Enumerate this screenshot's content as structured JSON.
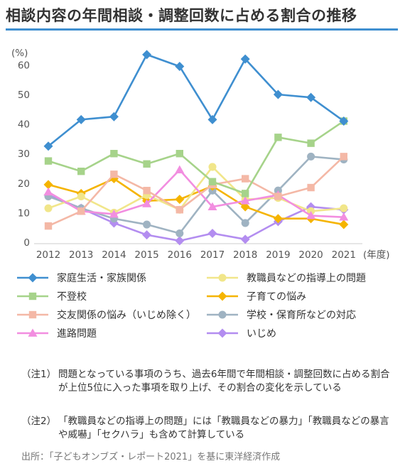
{
  "title": "相談内容の年間相談・調整回数に占める割合の推移",
  "colors": {
    "accent": "#3f8fd0"
  },
  "chart_data": {
    "type": "line",
    "title": "相談内容の年間相談・調整回数に占める割合の推移",
    "y_unit_label": "(%)",
    "x_unit_label": "(年度)",
    "xlabel": "",
    "ylabel": "",
    "x": [
      "2012",
      "2013",
      "2014",
      "2015",
      "2016",
      "2017",
      "2018",
      "2019",
      "2020",
      "2021"
    ],
    "ylim": [
      0,
      65
    ],
    "yticks": [
      "0",
      "10",
      "20",
      "30",
      "40",
      "50",
      "60"
    ],
    "grid": false,
    "legend_position": "bottom",
    "series": [
      {
        "name": "家庭生活・家族関係",
        "color": "#3f8fd0",
        "marker": "diamond",
        "values": [
          32.5,
          41.5,
          42.5,
          63.5,
          59.5,
          41.5,
          62.0,
          50.0,
          49.0,
          41.0
        ]
      },
      {
        "name": "不登校",
        "color": "#a6d38a",
        "marker": "square",
        "values": [
          27.5,
          24.0,
          30.0,
          26.5,
          30.0,
          20.5,
          16.5,
          35.5,
          33.5,
          41.0
        ]
      },
      {
        "name": "交友関係の悩み（いじめ除く）",
        "color": "#f4b8a6",
        "marker": "square",
        "values": [
          5.5,
          10.5,
          23.0,
          17.5,
          11.0,
          19.5,
          21.5,
          15.5,
          18.5,
          29.0
        ]
      },
      {
        "name": "進路問題",
        "color": "#f28ee0",
        "marker": "triangle",
        "values": [
          17.0,
          10.5,
          9.5,
          13.0,
          24.5,
          12.0,
          14.0,
          16.0,
          9.0,
          8.5
        ]
      },
      {
        "name": "教職員などの指導上の問題",
        "color": "#f1e68a",
        "marker": "circle",
        "values": [
          11.5,
          15.5,
          10.0,
          16.0,
          11.0,
          25.5,
          14.5,
          15.0,
          10.5,
          11.5
        ]
      },
      {
        "name": "子育ての悩み",
        "color": "#f5b400",
        "marker": "diamond",
        "values": [
          19.5,
          16.5,
          21.5,
          14.0,
          14.5,
          19.0,
          12.0,
          8.0,
          8.0,
          6.0
        ]
      },
      {
        "name": "学校・保育所などの対応",
        "color": "#9fb3c2",
        "marker": "circle",
        "values": [
          15.5,
          11.5,
          8.0,
          6.0,
          3.0,
          17.5,
          6.5,
          17.5,
          29.0,
          28.0
        ]
      },
      {
        "name": "いじめ",
        "color": "#b38df0",
        "marker": "diamond",
        "values": [
          16.0,
          11.5,
          6.5,
          2.5,
          0.5,
          3.0,
          1.0,
          7.0,
          12.0,
          11.0
        ]
      }
    ]
  },
  "legend": [
    {
      "label": "家庭生活・家族関係"
    },
    {
      "label": "教職員などの指導上の問題"
    },
    {
      "label": "不登校"
    },
    {
      "label": "子育ての悩み"
    },
    {
      "label": "交友関係の悩み（いじめ除く）"
    },
    {
      "label": "学校・保育所などの対応"
    },
    {
      "label": "進路問題"
    },
    {
      "label": "いじめ"
    }
  ],
  "notes": [
    {
      "label": "（注1）",
      "text": "問題となっている事項のうち、過去6年間で年間相談・調整回数に占める割合が上位5位に入った事項を取り上げ、その割合の変化を示している"
    },
    {
      "label": "（注2）",
      "text": "「教職員などの指導上の問題」には「教職員などの暴力」「教職員などの暴言や威嚇」「セクハラ」も含めて計算している"
    }
  ],
  "source": "出所：「子どもオンブズ・レポート2021」を基に東洋経済作成"
}
